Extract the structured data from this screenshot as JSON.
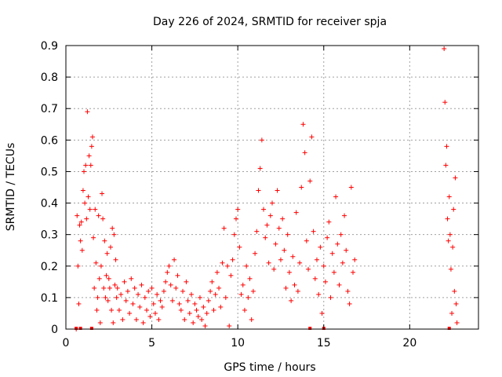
{
  "chart_data": {
    "type": "scatter",
    "title": "Day 226 of 2024, SRMTID for receiver spja",
    "xlabel": "GPS time / hours",
    "ylabel": "SRMTID / TECUs",
    "xlim": [
      0,
      24
    ],
    "ylim": [
      0,
      0.9
    ],
    "xticks": [
      0,
      5,
      10,
      15,
      20
    ],
    "xtick_labels": [
      "0",
      "5",
      "10",
      "15",
      "20"
    ],
    "yticks": [
      0,
      0.1,
      0.2,
      0.3,
      0.4,
      0.5,
      0.6,
      0.7,
      0.8,
      0.9
    ],
    "ytick_labels": [
      "0",
      "0.1",
      "0.2",
      "0.3",
      "0.4",
      "0.5",
      "0.6",
      "0.7",
      "0.8",
      "0.9"
    ],
    "grid": true,
    "marker": "plus",
    "color": "#ff0000",
    "series": [
      {
        "name": "SRMTID",
        "x": [
          0.6,
          0.65,
          0.7,
          0.75,
          0.8,
          0.85,
          0.9,
          0.95,
          1.0,
          1.05,
          1.1,
          1.15,
          1.2,
          1.25,
          1.3,
          1.35,
          1.4,
          1.45,
          1.5,
          1.55,
          1.6,
          1.65,
          1.7,
          1.75,
          1.8,
          1.85,
          1.9,
          1.95,
          2.0,
          2.05,
          2.1,
          2.15,
          2.2,
          2.25,
          2.3,
          2.35,
          2.4,
          2.45,
          2.5,
          2.55,
          2.6,
          2.65,
          2.7,
          2.75,
          2.8,
          2.85,
          2.9,
          2.95,
          3.0,
          3.1,
          3.2,
          3.3,
          3.4,
          3.5,
          3.6,
          3.7,
          3.8,
          3.9,
          4.0,
          4.1,
          4.2,
          4.3,
          4.4,
          4.5,
          4.6,
          4.7,
          4.8,
          4.9,
          5.0,
          5.1,
          5.2,
          5.3,
          5.4,
          5.5,
          5.6,
          5.7,
          5.8,
          5.9,
          6.0,
          6.1,
          6.2,
          6.3,
          6.4,
          6.5,
          6.6,
          6.7,
          6.8,
          6.9,
          7.0,
          7.1,
          7.2,
          7.3,
          7.4,
          7.5,
          7.6,
          7.7,
          7.8,
          7.9,
          8.0,
          8.1,
          8.2,
          8.3,
          8.4,
          8.5,
          8.6,
          8.7,
          8.8,
          8.9,
          9.0,
          9.1,
          9.2,
          9.3,
          9.4,
          9.5,
          9.6,
          9.7,
          9.8,
          9.9,
          10.0,
          10.1,
          10.2,
          10.3,
          10.4,
          10.5,
          10.6,
          10.7,
          10.8,
          10.9,
          11.0,
          11.1,
          11.2,
          11.3,
          11.4,
          11.5,
          11.6,
          11.7,
          11.8,
          11.9,
          12.0,
          12.1,
          12.2,
          12.3,
          12.4,
          12.5,
          12.6,
          12.7,
          12.8,
          12.9,
          13.0,
          13.1,
          13.2,
          13.3,
          13.4,
          13.5,
          13.6,
          13.7,
          13.8,
          13.9,
          14.0,
          14.1,
          14.2,
          14.3,
          14.4,
          14.5,
          14.6,
          14.7,
          14.8,
          14.9,
          15.0,
          15.1,
          15.2,
          15.3,
          15.4,
          15.5,
          15.6,
          15.7,
          15.8,
          15.9,
          16.0,
          16.1,
          16.2,
          16.3,
          16.4,
          16.5,
          16.6,
          16.7,
          16.8,
          22.0,
          22.05,
          22.1,
          22.15,
          22.2,
          22.25,
          22.3,
          22.35,
          22.4,
          22.45,
          22.5,
          22.55,
          22.6,
          22.65,
          22.7,
          22.75
        ],
        "y": [
          0.0,
          0.36,
          0.2,
          0.08,
          0.33,
          0.28,
          0.34,
          0.25,
          0.44,
          0.5,
          0.4,
          0.52,
          0.35,
          0.69,
          0.42,
          0.55,
          0.38,
          0.52,
          0.58,
          0.61,
          0.29,
          0.13,
          0.38,
          0.21,
          0.06,
          0.1,
          0.36,
          0.16,
          0.02,
          0.2,
          0.43,
          0.35,
          0.13,
          0.28,
          0.1,
          0.17,
          0.24,
          0.09,
          0.16,
          0.13,
          0.26,
          0.06,
          0.32,
          0.02,
          0.3,
          0.14,
          0.22,
          0.1,
          0.13,
          0.06,
          0.11,
          0.03,
          0.15,
          0.09,
          0.12,
          0.05,
          0.16,
          0.08,
          0.13,
          0.03,
          0.11,
          0.07,
          0.14,
          0.02,
          0.1,
          0.06,
          0.12,
          0.04,
          0.13,
          0.08,
          0.05,
          0.11,
          0.03,
          0.09,
          0.07,
          0.12,
          0.15,
          0.18,
          0.2,
          0.14,
          0.09,
          0.22,
          0.13,
          0.17,
          0.08,
          0.06,
          0.12,
          0.03,
          0.15,
          0.09,
          0.05,
          0.11,
          0.02,
          0.08,
          0.06,
          0.04,
          0.1,
          0.03,
          0.07,
          0.01,
          0.05,
          0.09,
          0.12,
          0.15,
          0.06,
          0.11,
          0.18,
          0.13,
          0.07,
          0.21,
          0.32,
          0.1,
          0.2,
          0.01,
          0.17,
          0.22,
          0.3,
          0.35,
          0.38,
          0.26,
          0.11,
          0.14,
          0.06,
          0.2,
          0.1,
          0.16,
          0.03,
          0.12,
          0.24,
          0.31,
          0.44,
          0.51,
          0.6,
          0.38,
          0.29,
          0.33,
          0.21,
          0.36,
          0.4,
          0.19,
          0.27,
          0.44,
          0.32,
          0.22,
          0.35,
          0.25,
          0.13,
          0.3,
          0.18,
          0.09,
          0.23,
          0.14,
          0.37,
          0.12,
          0.21,
          0.45,
          0.65,
          0.56,
          0.28,
          0.19,
          0.47,
          0.61,
          0.31,
          0.16,
          0.22,
          0.11,
          0.26,
          0.05,
          0.2,
          0.15,
          0.29,
          0.34,
          0.1,
          0.24,
          0.18,
          0.42,
          0.27,
          0.14,
          0.3,
          0.21,
          0.36,
          0.25,
          0.12,
          0.08,
          0.45,
          0.18,
          0.22,
          0.89,
          0.72,
          0.52,
          0.58,
          0.35,
          0.28,
          0.42,
          0.3,
          0.19,
          0.05,
          0.26,
          0.38,
          0.12,
          0.48,
          0.08,
          0.02
        ]
      }
    ],
    "axis_zero_markers_x": [
      0.6,
      0.85,
      1.5,
      14.2,
      15.0,
      22.3
    ]
  }
}
